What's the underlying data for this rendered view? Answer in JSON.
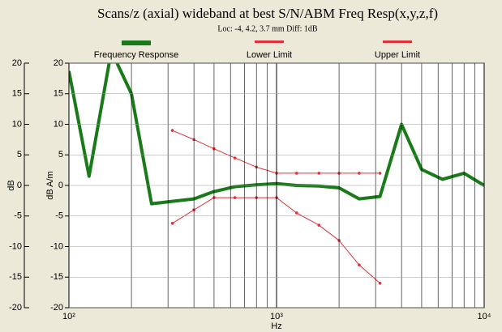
{
  "chart_data": {
    "type": "line",
    "title": "Scans/z (axial) wideband at best S/N/ABM Freq Resp(x,y,z,f)",
    "subtitle": "Loc: -4, 4.2, 3.7 mm Diff: 1dB",
    "xlabel": "Hz",
    "ylabel": "dB",
    "y2label": "dB A/m",
    "xscale": "log",
    "xlim": [
      100,
      10000
    ],
    "xticks": [
      {
        "value": 100,
        "label": "10²"
      },
      {
        "value": 1000,
        "label": "10³"
      },
      {
        "value": 10000,
        "label": "10⁴"
      }
    ],
    "xminorticks": [
      200,
      300,
      400,
      500,
      600,
      700,
      800,
      900,
      2000,
      3000,
      4000,
      5000,
      6000,
      7000,
      8000,
      9000
    ],
    "ylim": [
      -20,
      20
    ],
    "yticks": [
      -20,
      -15,
      -10,
      -5,
      0,
      5,
      10,
      15,
      20
    ],
    "y2lim": [
      -20,
      20
    ],
    "y2ticks": [
      -20,
      -15,
      -10,
      -5,
      0,
      5,
      10,
      15,
      20
    ],
    "grid": true,
    "series": [
      {
        "name": "Frequency Response",
        "color": "#1a7a1a",
        "width": 4,
        "markers": false,
        "axis": "y2",
        "x": [
          100,
          125,
          160,
          200,
          250,
          315,
          400,
          500,
          630,
          800,
          1000,
          1250,
          1600,
          2000,
          2500,
          3150,
          4000,
          5000,
          6300,
          8000,
          10000
        ],
        "values": [
          18.7,
          1.5,
          22,
          15,
          -3,
          -2.6,
          -2.2,
          -1,
          -0.2,
          0.1,
          0.3,
          0,
          -0.1,
          -0.4,
          -2.2,
          -1.8,
          10,
          2.6,
          1,
          2,
          0
        ]
      },
      {
        "name": "Lower Limit",
        "color": "#e0303a",
        "width": 1,
        "markers": true,
        "axis": "y2",
        "x": [
          315,
          400,
          500,
          630,
          800,
          1000,
          1250,
          1600,
          2000,
          2500,
          3150
        ],
        "values": [
          -6.2,
          -4,
          -2,
          -2,
          -2,
          -2,
          -4.5,
          -6.5,
          -9,
          -13,
          -16
        ]
      },
      {
        "name": "Upper Limit",
        "color": "#e0303a",
        "width": 1,
        "markers": true,
        "axis": "y2",
        "x": [
          315,
          400,
          500,
          630,
          800,
          1000,
          1250,
          1600,
          2000,
          2500,
          3150
        ],
        "values": [
          9,
          7.5,
          6,
          4.5,
          3,
          2,
          2,
          2,
          2,
          2,
          2
        ]
      }
    ]
  }
}
